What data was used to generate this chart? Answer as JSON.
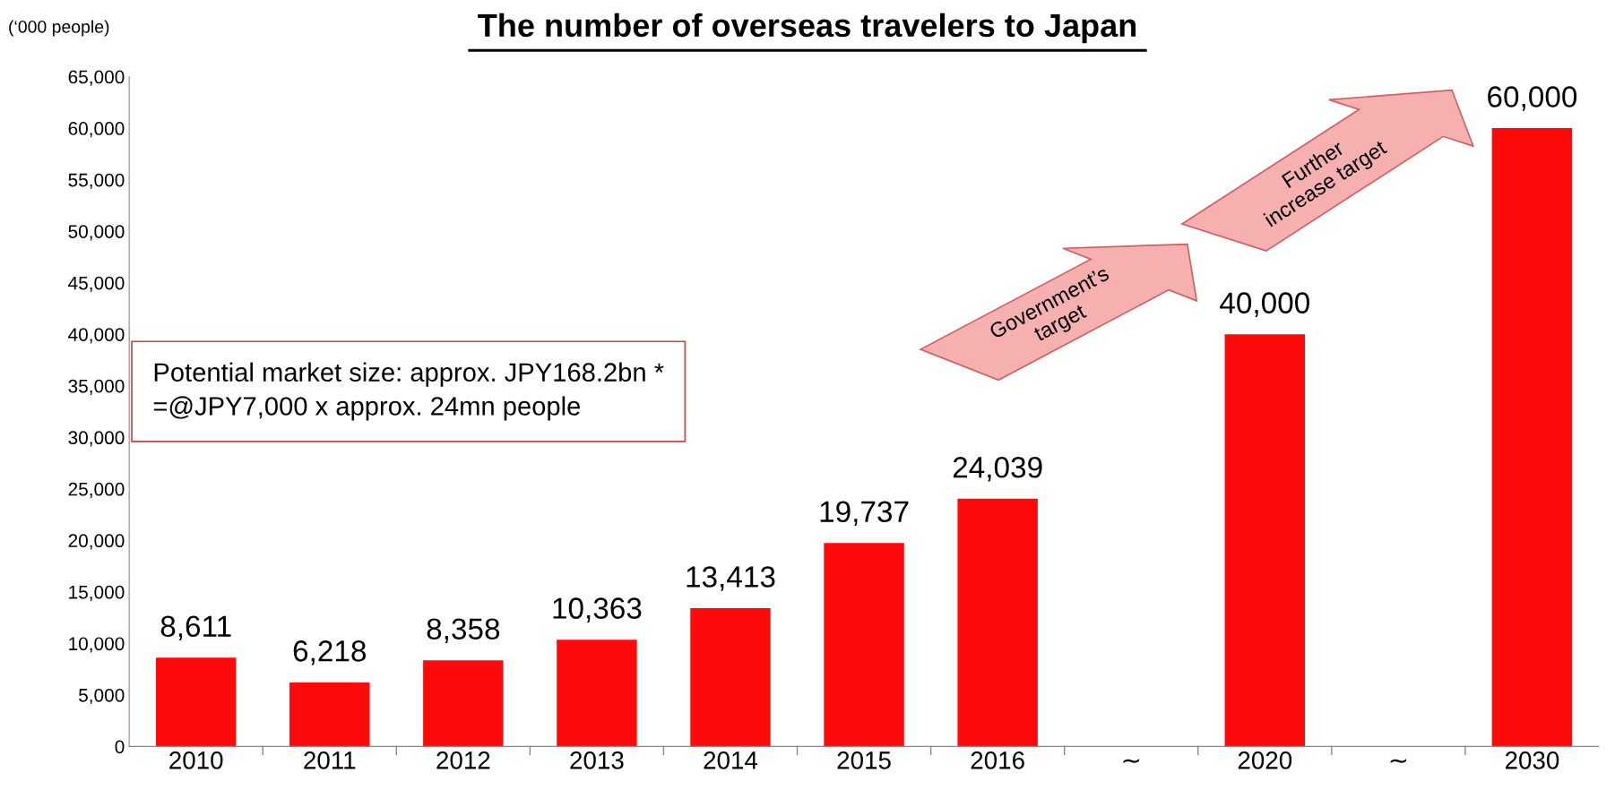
{
  "chart_data": {
    "type": "bar",
    "title": "The number of overseas travelers to Japan",
    "ylabel": "(‘000 people)",
    "categories": [
      "2010",
      "2011",
      "2012",
      "2013",
      "2014",
      "2015",
      "2016",
      "∼",
      "2020",
      "∼",
      "2030"
    ],
    "values": [
      8611,
      6218,
      8358,
      10363,
      13413,
      19737,
      24039,
      null,
      40000,
      null,
      60000
    ],
    "value_labels": [
      "8,611",
      "6,218",
      "8,358",
      "10,363",
      "13,413",
      "19,737",
      "24,039",
      null,
      "40,000",
      null,
      "60,000"
    ],
    "color": "#ff0a0a",
    "ylim": [
      0,
      65000
    ],
    "yticks": [
      0,
      {
        "value": 5000,
        "label": "5,000"
      },
      {
        "value": 10000,
        "label": "10,000"
      },
      {
        "value": 15000,
        "label": "15,000"
      },
      {
        "value": 20000,
        "label": "20,000"
      },
      {
        "value": 25000,
        "label": "25,000"
      },
      {
        "value": 30000,
        "label": "30,000"
      },
      {
        "value": 35000,
        "label": "35,000"
      },
      {
        "value": 40000,
        "label": "40,000"
      },
      {
        "value": 45000,
        "label": "45,000"
      },
      {
        "value": 50000,
        "label": "50,000"
      },
      {
        "value": 55000,
        "label": "55,000"
      },
      {
        "value": 60000,
        "label": "60,000"
      },
      {
        "value": 65000,
        "label": "65,000"
      }
    ],
    "grid": false,
    "legend": false,
    "annotations": [
      "Potential market size: approx. JPY168.2bn *\n=@JPY7,000 x approx. 24mn people",
      "Government’s\ntarget",
      "Further\nincrease target"
    ]
  }
}
